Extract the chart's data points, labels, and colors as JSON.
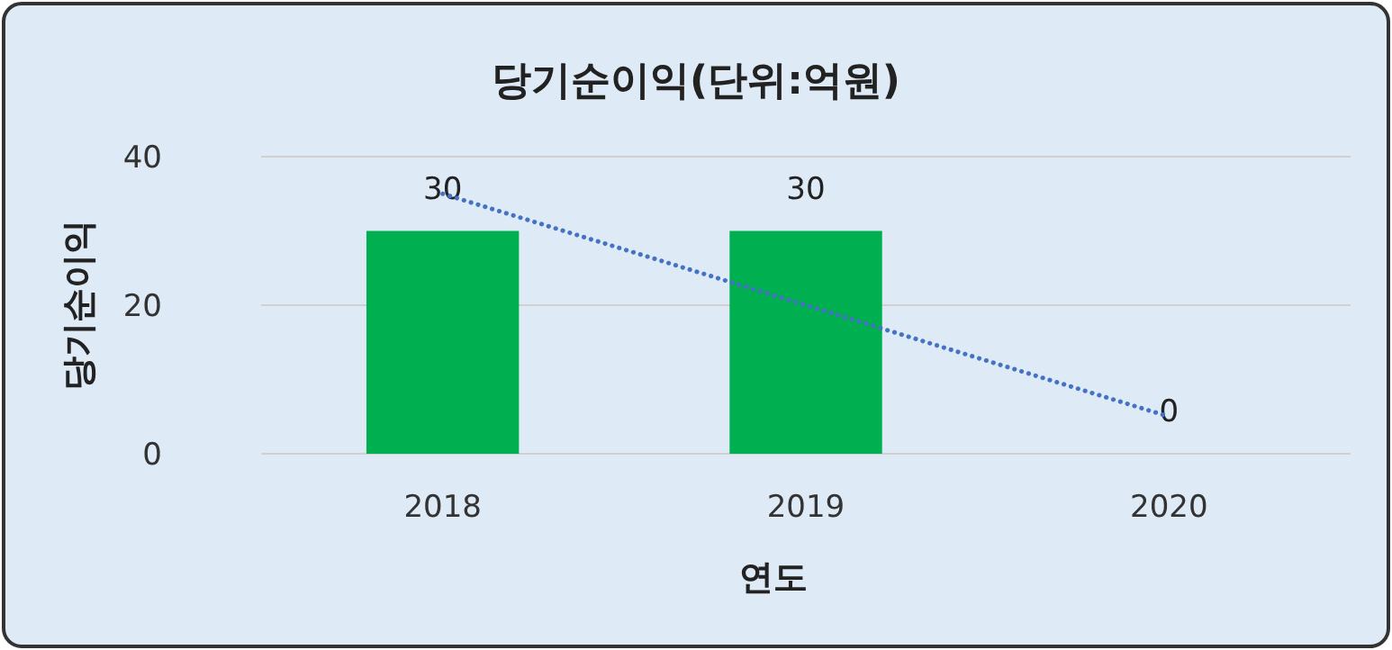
{
  "chart_data": {
    "type": "bar",
    "title": "당기순이익(단위:억원)",
    "xlabel": "연도",
    "ylabel": "당기순이익",
    "categories": [
      "2018",
      "2019",
      "2020"
    ],
    "series": [
      {
        "color": "#00b050",
        "values": [
          30,
          30,
          0
        ],
        "value_labels": [
          "30",
          "30",
          "0"
        ]
      },
      {
        "type": "line",
        "color": "#4472c4",
        "line_style": "dotted",
        "values": [
          35,
          20,
          5
        ]
      }
    ],
    "ylim": [
      0,
      40
    ],
    "yticks": [
      0,
      20,
      40
    ],
    "grid": "y"
  }
}
